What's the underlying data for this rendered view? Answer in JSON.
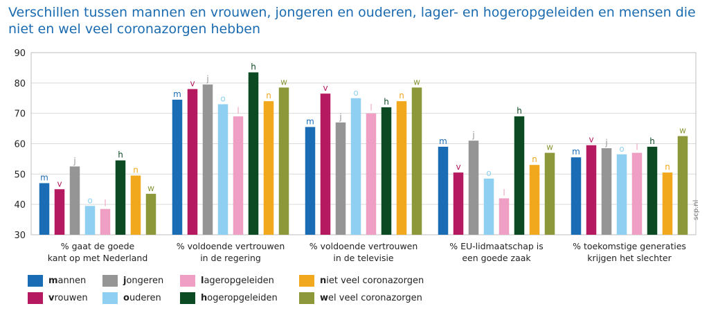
{
  "title": "Verschillen tussen mannen en vrouwen, jongeren en ouderen, lager- en hogeropgeleiden en mensen die niet en wel veel coronazorgen hebben",
  "watermark": "scp.nl",
  "chart_data": {
    "type": "bar",
    "ylim": [
      30,
      90
    ],
    "yticks": [
      30,
      40,
      50,
      60,
      70,
      80,
      90
    ],
    "grid": true,
    "legend_position": "bottom",
    "categories": [
      "% gaat de goede kant op met Nederland",
      "% voldoende vertrouwen in de regering",
      "% voldoende vertrouwen in de televisie",
      "% EU-lidmaatschap is een goede zaak",
      "% toekomstige generaties krijgen het slechter"
    ],
    "category_lines": [
      [
        "% gaat de goede",
        "kant op met Nederland"
      ],
      [
        "% voldoende vertrouwen",
        "in de regering"
      ],
      [
        "% voldoende vertrouwen",
        "in de televisie"
      ],
      [
        "% EU-lidmaatschap is",
        "een goede zaak"
      ],
      [
        "% toekomstige generaties",
        "krijgen het slechter"
      ]
    ],
    "series": [
      {
        "name": "mannen",
        "key": "m",
        "color": "#1a6db5",
        "values": [
          47,
          74.5,
          65.5,
          59,
          55.5
        ]
      },
      {
        "name": "vrouwen",
        "key": "v",
        "color": "#b5195f",
        "values": [
          45,
          78,
          76.5,
          50.5,
          59.5
        ]
      },
      {
        "name": "jongeren",
        "key": "j",
        "color": "#959595",
        "values": [
          52.5,
          79.5,
          67,
          61,
          58.5
        ]
      },
      {
        "name": "ouderen",
        "key": "o",
        "color": "#8fd0f2",
        "values": [
          39.5,
          73,
          75,
          48.5,
          56.5
        ]
      },
      {
        "name": "lageropgeleiden",
        "key": "l",
        "color": "#ef9fc3",
        "values": [
          38.5,
          69,
          70,
          42,
          57
        ]
      },
      {
        "name": "hogeropgeleiden",
        "key": "h",
        "color": "#0c4a24",
        "values": [
          54.5,
          83.5,
          72,
          69,
          59
        ]
      },
      {
        "name": "niet veel coronazorgen",
        "key": "n",
        "color": "#f2a81c",
        "values": [
          49.5,
          74,
          74,
          53,
          50.5
        ]
      },
      {
        "name": "wel veel coronazorgen",
        "key": "w",
        "color": "#8c983a",
        "values": [
          43.5,
          78.5,
          78.5,
          57,
          62.5
        ]
      }
    ]
  },
  "legend": [
    {
      "initial": "m",
      "rest": "annen"
    },
    {
      "initial": "v",
      "rest": "rouwen"
    },
    {
      "initial": "j",
      "rest": "ongeren"
    },
    {
      "initial": "o",
      "rest": "uderen"
    },
    {
      "initial": "l",
      "rest": "ageropgeleiden"
    },
    {
      "initial": "h",
      "rest": "ogeropgeleiden"
    },
    {
      "initial": "n",
      "rest": "iet veel coronazorgen"
    },
    {
      "initial": "w",
      "rest": "el veel coronazorgen"
    }
  ]
}
